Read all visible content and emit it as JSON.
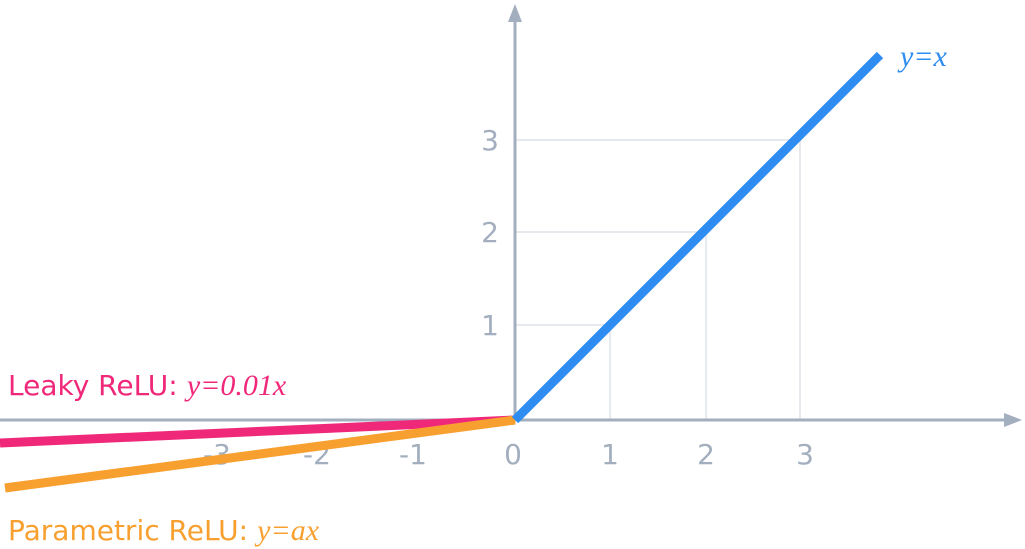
{
  "axes": {
    "x_tick_labels": [
      "-3",
      "-2",
      "-1",
      "0",
      "1",
      "2",
      "3"
    ],
    "y_tick_labels": [
      "1",
      "2",
      "3"
    ]
  },
  "curves": [
    {
      "formula": "y=x"
    },
    {
      "name": "Leaky ReLU:",
      "formula": "y=0.01x"
    },
    {
      "name": "Parametric ReLU:",
      "formula": "y=ax"
    }
  ]
}
